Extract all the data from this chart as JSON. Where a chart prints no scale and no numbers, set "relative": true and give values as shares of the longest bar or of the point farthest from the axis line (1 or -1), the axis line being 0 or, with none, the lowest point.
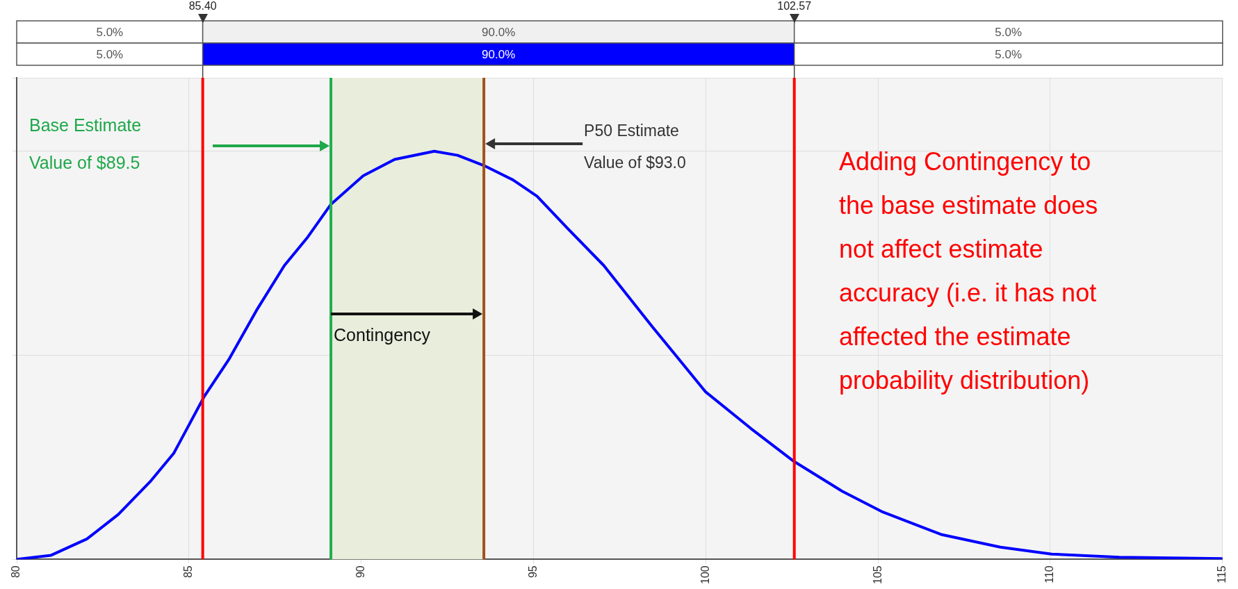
{
  "chart_data": {
    "type": "line",
    "relative": true,
    "grid": true,
    "legend": false,
    "x": [
      80,
      81.0,
      82.04,
      82.95,
      83.87,
      84.56,
      85.45,
      86.16,
      86.96,
      87.77,
      88.45,
      89.12,
      90.06,
      90.97,
      92.12,
      92.8,
      93.56,
      94.4,
      95.1,
      96.0,
      97.04,
      98.45,
      100.0,
      101.32,
      102.56,
      103.96,
      105.11,
      106.83,
      108.55,
      110.04,
      112.0,
      115
    ],
    "series": [
      {
        "color": "#0000ff",
        "values": [
          0.0,
          0.01,
          0.05,
          0.11,
          0.19,
          0.26,
          0.4,
          0.49,
          0.61,
          0.72,
          0.79,
          0.87,
          0.94,
          0.98,
          1.0,
          0.99,
          0.965,
          0.93,
          0.89,
          0.81,
          0.72,
          0.57,
          0.41,
          0.32,
          0.24,
          0.167,
          0.117,
          0.061,
          0.03,
          0.013,
          0.005,
          0.002
        ]
      }
    ],
    "xlim": [
      80,
      115
    ],
    "xticks": [
      80,
      85,
      90,
      95,
      100,
      105,
      110,
      115
    ],
    "ref_lines": [
      {
        "axis": "x",
        "value": 85.4,
        "label": "85.40",
        "color": "#ff0000"
      },
      {
        "axis": "x",
        "value": 102.57,
        "label": "102.57",
        "color": "#ff0000"
      },
      {
        "axis": "x",
        "value": 89.12,
        "color": "#1fb04f"
      },
      {
        "axis": "x",
        "value": 93.56,
        "color": "#a0521d"
      }
    ],
    "bands": [
      {
        "axis": "x",
        "from": 89.12,
        "to": 93.56,
        "color": "#e9eddc"
      }
    ],
    "annotations": [
      "Base Estimate\nValue of $89.5",
      "P50 Estimate\nValue of $93.0",
      "Contingency",
      "Adding Contingency to\nthe base estimate does\nnot affect estimate\naccuracy (i.e. it has not\naffected the estimate\nprobability distribution)",
      "5.0%",
      "90.0%",
      "5.0%",
      "5.0%",
      "90.0%",
      "5.0%"
    ]
  }
}
